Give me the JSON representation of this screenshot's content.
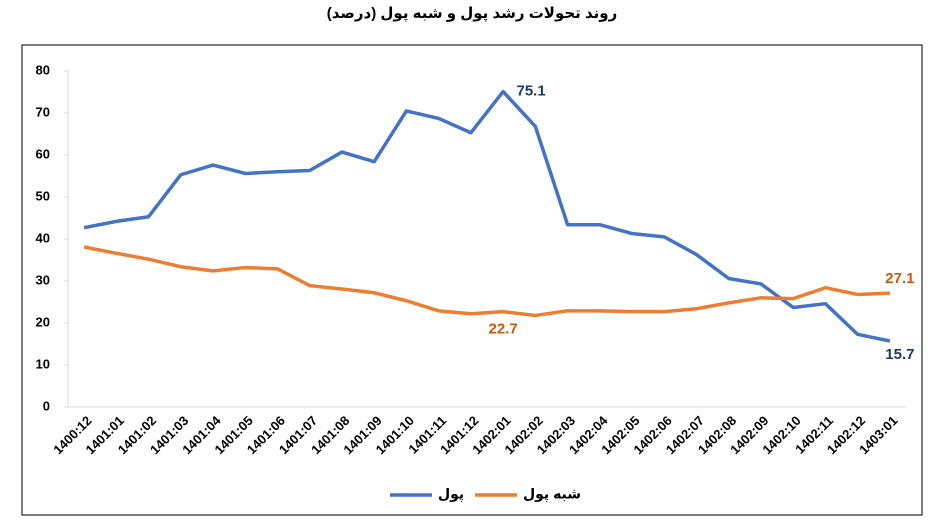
{
  "chart_data": {
    "type": "line",
    "title": "روند تحولات رشد پول و شبه پول (درصد)",
    "categories": [
      "1400:12",
      "1401:01",
      "1401:02",
      "1401:03",
      "1401:04",
      "1401:05",
      "1401:06",
      "1401:07",
      "1401:08",
      "1401:09",
      "1401:10",
      "1401:11",
      "1401:12",
      "1402:01",
      "1402:02",
      "1402:03",
      "1402:04",
      "1402:05",
      "1402:06",
      "1402:07",
      "1402:08",
      "1402:09",
      "1402:10",
      "1402:11",
      "1402:12",
      "1403:01"
    ],
    "series": [
      {
        "name": "پول",
        "color": "#4472c4",
        "values": [
          42.7,
          44.2,
          45.3,
          55.3,
          57.6,
          55.6,
          56.0,
          56.3,
          60.7,
          58.4,
          70.5,
          68.7,
          65.3,
          75.1,
          66.8,
          43.4,
          43.4,
          41.3,
          40.5,
          36.3,
          30.6,
          29.3,
          23.7,
          24.6,
          17.3,
          15.7
        ]
      },
      {
        "name": "شبه پول",
        "color": "#ed7d31",
        "values": [
          38.1,
          36.6,
          35.2,
          33.4,
          32.4,
          33.2,
          32.9,
          28.9,
          28.1,
          27.2,
          25.3,
          22.9,
          22.2,
          22.7,
          21.8,
          22.9,
          22.9,
          22.7,
          22.7,
          23.4,
          24.8,
          26.0,
          25.8,
          28.4,
          26.8,
          27.1
        ]
      }
    ],
    "ylim": [
      0,
      80
    ],
    "yticks": [
      0,
      10,
      20,
      30,
      40,
      50,
      60,
      70,
      80
    ],
    "grid": false,
    "legend": "bottom"
  }
}
